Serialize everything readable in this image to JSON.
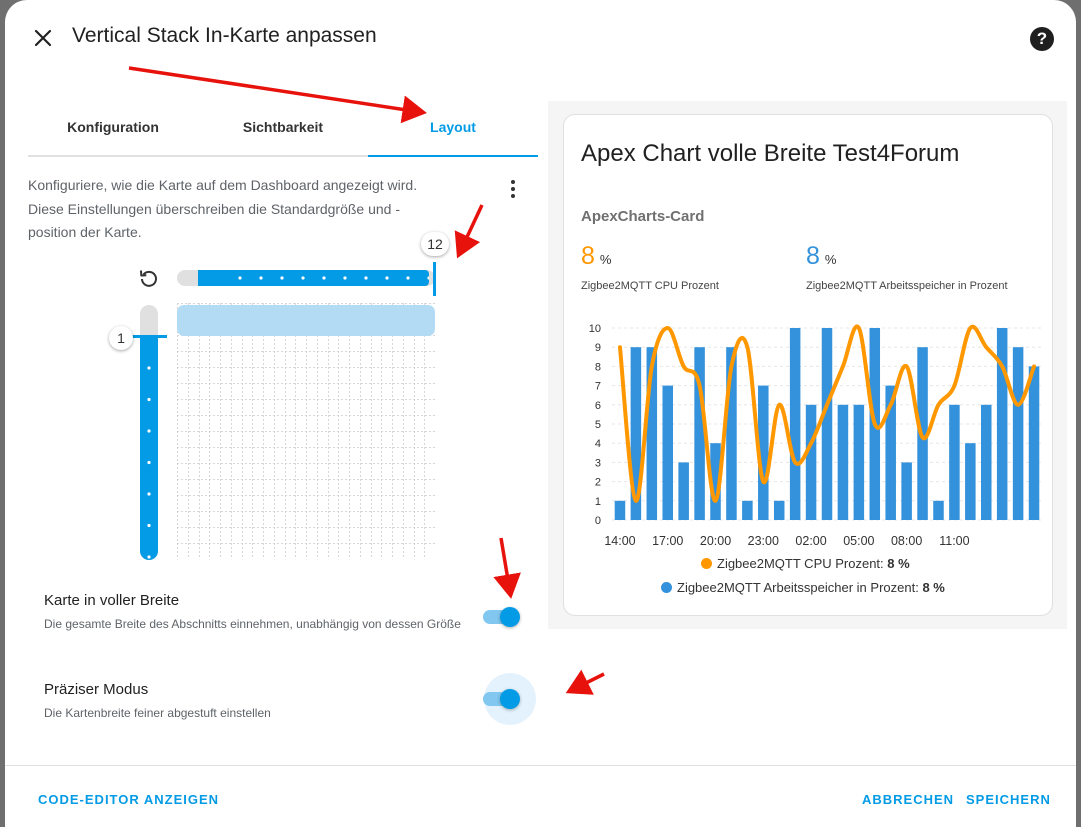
{
  "dialog": {
    "title": "Vertical Stack In-Karte anpassen",
    "close_icon": "close-icon",
    "help_icon": "help-icon",
    "help_glyph": "?"
  },
  "tabs": [
    {
      "label": "Konfiguration",
      "active": false
    },
    {
      "label": "Sichtbarkeit",
      "active": false
    },
    {
      "label": "Layout",
      "active": true
    }
  ],
  "layout": {
    "description": "Konfiguriere, wie die Karte auf dem Dashboard angezeigt wird. Diese Einstellungen überschreiben die Standardgröße und -position der Karte.",
    "menu_icon": "dots-vertical-icon",
    "reset_icon": "restore-icon",
    "width_value": "12",
    "height_value": "1",
    "width_max": 12,
    "height_max": 8,
    "options": [
      {
        "title": "Karte in voller Breite",
        "description": "Die gesamte Breite des Abschnitts einnehmen, unabhängig von dessen Größe",
        "enabled": true
      },
      {
        "title": "Präziser Modus",
        "description": "Die Kartenbreite feiner abgestuft einstellen",
        "enabled": true
      }
    ]
  },
  "preview": {
    "card_title": "Apex Chart volle Breite Test4Forum",
    "card_subtitle": "ApexCharts-Card",
    "stats": [
      {
        "value": "8",
        "unit": "%",
        "label": "Zigbee2MQTT CPU Prozent",
        "color": "#ff9800"
      },
      {
        "value": "8",
        "unit": "%",
        "label": "Zigbee2MQTT Arbeitsspeicher in Prozent",
        "color": "#3392db"
      }
    ]
  },
  "chart_data": {
    "type": "bar",
    "x_ticks": [
      "14:00",
      "17:00",
      "20:00",
      "23:00",
      "02:00",
      "05:00",
      "08:00",
      "11:00"
    ],
    "y_ticks": [
      "0",
      "1",
      "2",
      "3",
      "4",
      "5",
      "6",
      "7",
      "8",
      "9",
      "10"
    ],
    "ylim": [
      0,
      10
    ],
    "grid": true,
    "legend_position": "bottom",
    "series": [
      {
        "name": "Zigbee2MQTT CPU Prozent",
        "type": "line",
        "color": "#ff9800",
        "values": [
          9,
          1,
          8,
          10,
          8,
          7,
          1,
          8,
          9,
          2,
          6,
          3,
          4,
          6,
          8,
          10,
          5,
          6,
          8,
          4.3,
          6,
          7,
          10,
          9,
          8,
          6,
          8
        ]
      },
      {
        "name": "Zigbee2MQTT Arbeitsspeicher in Prozent",
        "type": "bar",
        "color": "#3392db",
        "values": [
          1,
          9,
          9,
          7,
          3,
          9,
          4,
          9,
          1,
          7,
          1,
          10,
          6,
          10,
          6,
          6,
          10,
          7,
          3,
          9,
          1,
          6,
          4,
          6,
          10,
          9,
          8
        ]
      }
    ],
    "legend": [
      {
        "name": "Zigbee2MQTT CPU Prozent:",
        "value": "8 %",
        "color": "#ff9800"
      },
      {
        "name": "Zigbee2MQTT Arbeitsspeicher in Prozent:",
        "value": "8 %",
        "color": "#3392db"
      }
    ]
  },
  "footer": {
    "code_editor": "CODE-EDITOR ANZEIGEN",
    "cancel": "ABBRECHEN",
    "save": "SPEICHERN"
  }
}
